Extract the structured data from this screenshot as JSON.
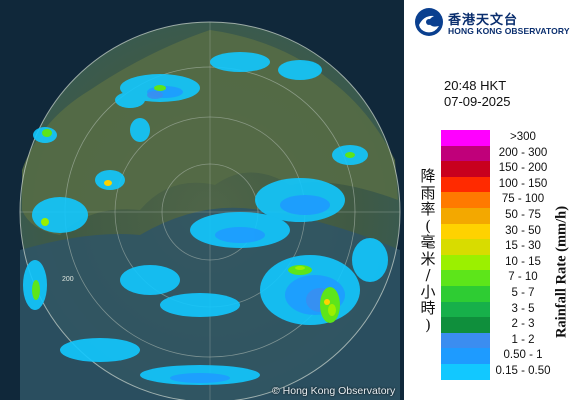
{
  "radar": {
    "copyright": "© Hong Kong Observatory",
    "range_label": "200"
  },
  "logo": {
    "name_zh": "香港天文台",
    "name_en": "HONG KONG OBSERVATORY",
    "icon": "hko-logo-icon"
  },
  "timestamp": {
    "time": "20:48 HKT",
    "date": "07-09-2025"
  },
  "legend": {
    "title_en": "Rainfall Rate (mm/h)",
    "title_zh": "降雨率(毫米/小時)",
    "items": [
      {
        "label": ">300",
        "color": "#ff00ff"
      },
      {
        "label": "200 - 300",
        "color": "#c0007a"
      },
      {
        "label": "150 - 200",
        "color": "#c8001e"
      },
      {
        "label": "100 - 150",
        "color": "#ff2a00"
      },
      {
        "label": "75 - 100",
        "color": "#ff7a00"
      },
      {
        "label": "50 - 75",
        "color": "#f3a800"
      },
      {
        "label": "30 - 50",
        "color": "#ffd200"
      },
      {
        "label": "15 - 30",
        "color": "#d8dc00"
      },
      {
        "label": "10 - 15",
        "color": "#9bf000"
      },
      {
        "label": "7 - 10",
        "color": "#5de51a"
      },
      {
        "label": "5 - 7",
        "color": "#2ecc33"
      },
      {
        "label": "3 - 5",
        "color": "#17b04a"
      },
      {
        "label": "2 - 3",
        "color": "#0f8f3c"
      },
      {
        "label": "1 - 2",
        "color": "#3b8df0"
      },
      {
        "label": "0.50 - 1",
        "color": "#1e9bff"
      },
      {
        "label": "0.15 - 0.50",
        "color": "#12c8ff"
      }
    ]
  }
}
